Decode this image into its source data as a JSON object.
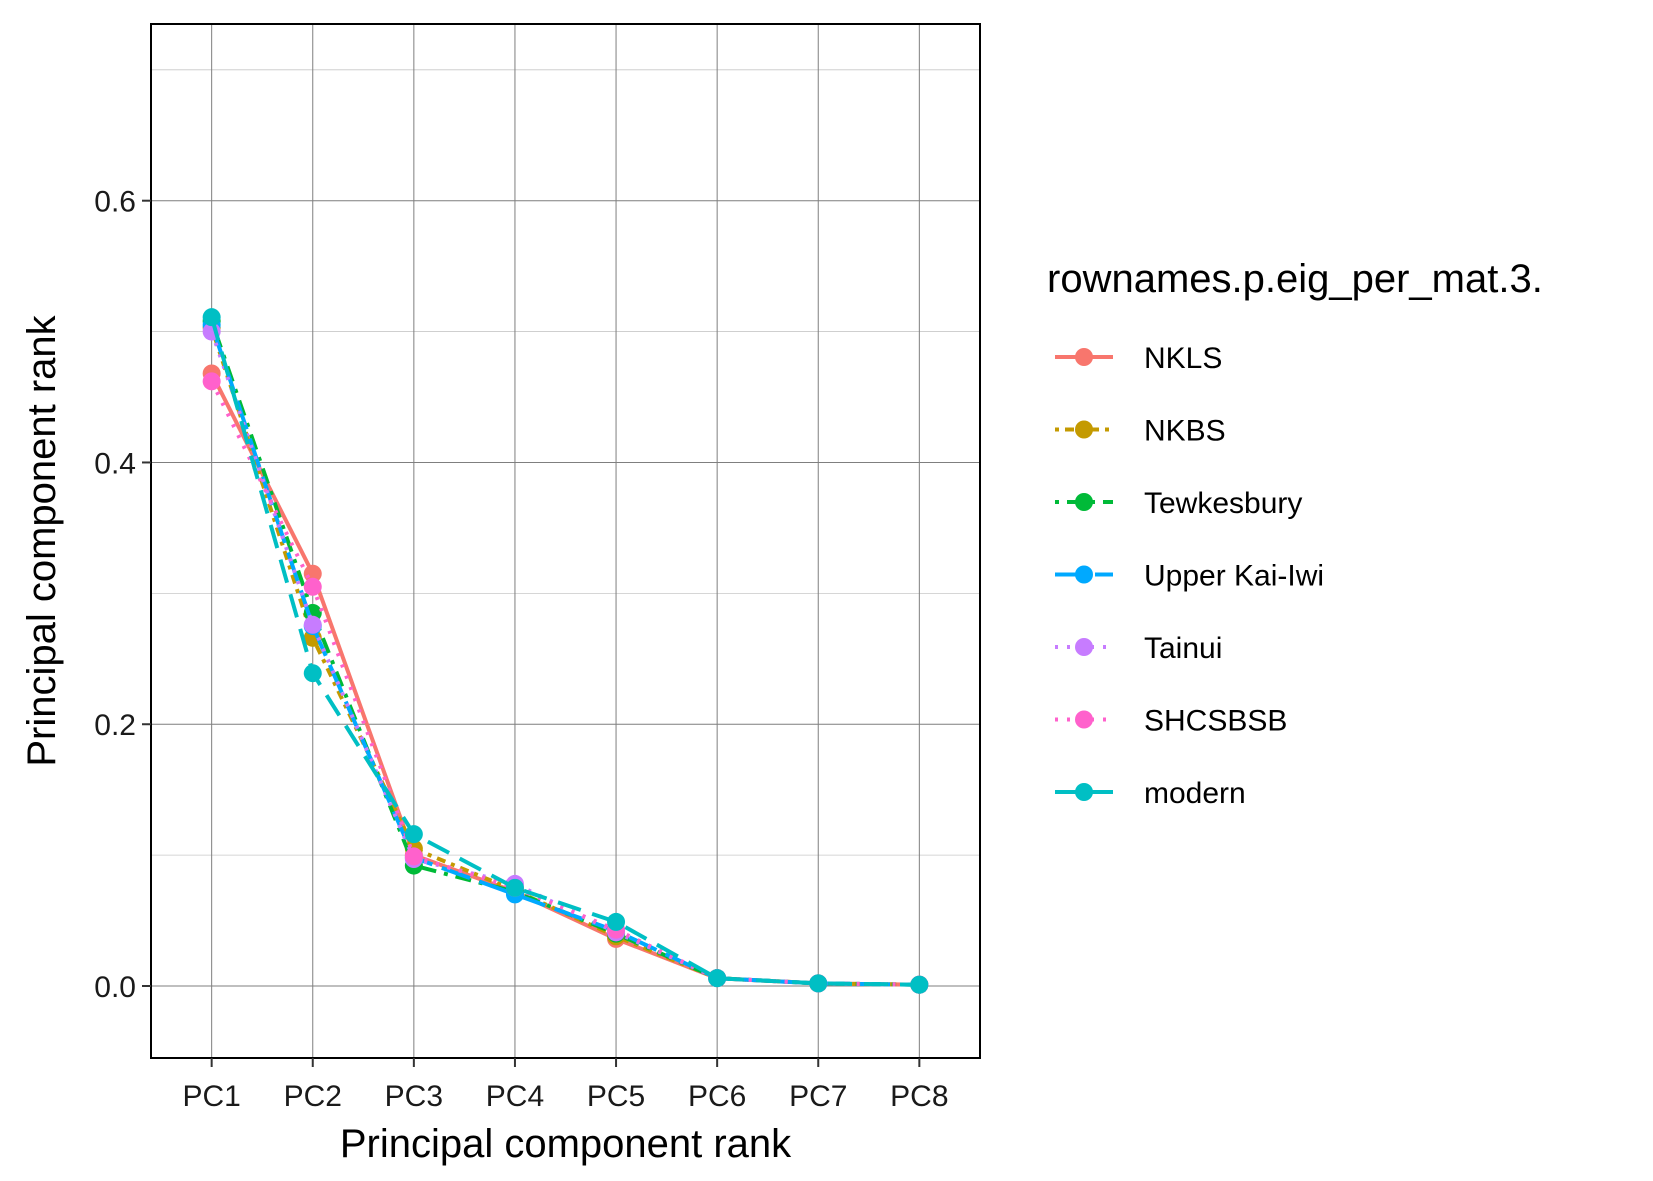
{
  "chart_data": {
    "type": "line",
    "title": "",
    "xlabel": "Principal component rank",
    "ylabel": "Principal component rank",
    "categories": [
      "PC1",
      "PC2",
      "PC3",
      "PC4",
      "PC5",
      "PC6",
      "PC7",
      "PC8"
    ],
    "ylim": [
      -0.055,
      0.735
    ],
    "yticks": [
      0.0,
      0.2,
      0.4,
      0.6
    ],
    "ytick_labels": [
      "0.0",
      "0.2",
      "0.4",
      "0.6"
    ],
    "grid": true,
    "legend": {
      "title": "rownames.p.eig_per_mat.3.",
      "position": "right"
    },
    "series": [
      {
        "name": "NKLS",
        "color": "#F8766D",
        "dash": "solid",
        "values": [
          0.468,
          0.315,
          0.1,
          0.072,
          0.036,
          0.006,
          0.002,
          0.001
        ]
      },
      {
        "name": "NKBS",
        "color": "#C49A00",
        "dash": "dotted-dash",
        "values": [
          0.503,
          0.266,
          0.105,
          0.073,
          0.038,
          0.006,
          0.002,
          0.001
        ]
      },
      {
        "name": "Tewkesbury",
        "color": "#00BA38",
        "dash": "dashdot",
        "values": [
          0.508,
          0.285,
          0.092,
          0.072,
          0.04,
          0.006,
          0.002,
          0.001
        ]
      },
      {
        "name": "Upper Kai-Iwi",
        "color": "#00A9FF",
        "dash": "longdash",
        "values": [
          0.505,
          0.275,
          0.098,
          0.07,
          0.042,
          0.006,
          0.002,
          0.001
        ]
      },
      {
        "name": "Tainui",
        "color": "#C77CFF",
        "dash": "dotted",
        "values": [
          0.5,
          0.276,
          0.097,
          0.078,
          0.041,
          0.006,
          0.002,
          0.001
        ]
      },
      {
        "name": "SHCSBSB",
        "color": "#FF61CC",
        "dash": "dotted",
        "values": [
          0.462,
          0.305,
          0.099,
          0.075,
          0.043,
          0.006,
          0.002,
          0.001
        ]
      },
      {
        "name": "modern",
        "color": "#00BFC4",
        "dash": "dashed",
        "values": [
          0.511,
          0.239,
          0.116,
          0.075,
          0.049,
          0.006,
          0.002,
          0.001
        ]
      }
    ]
  }
}
